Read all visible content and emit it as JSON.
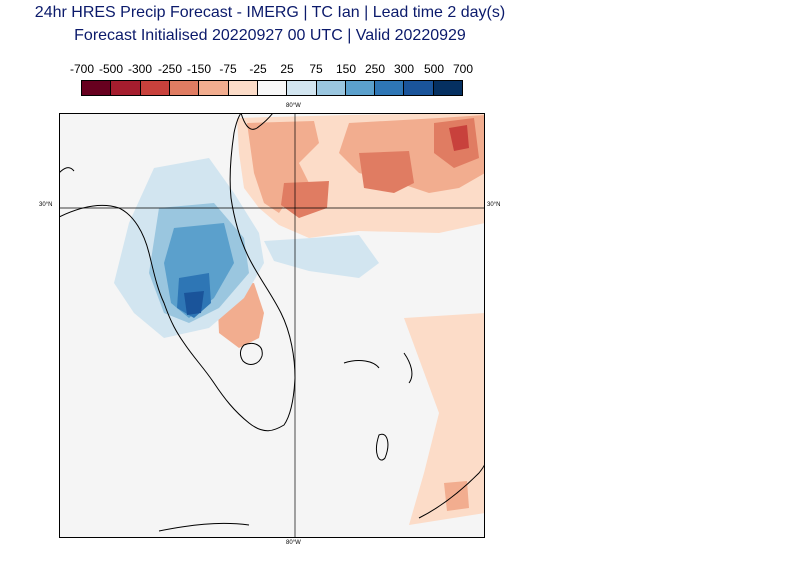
{
  "header": {
    "line1": "24hr HRES Precip Forecast - IMERG | TC Ian | Lead time 2 day(s)",
    "line2": "Forecast Initialised 20220927 00 UTC | Valid 20220929"
  },
  "colorbar": {
    "ticks": [
      "-700",
      "-500",
      "-300",
      "-250",
      "-150",
      "-75",
      "-25",
      "25",
      "75",
      "150",
      "250",
      "300",
      "500",
      "700"
    ],
    "colors": [
      "#67001f",
      "#a51d2e",
      "#c8413c",
      "#e07c62",
      "#f2ad8f",
      "#fcdcc8",
      "#f7f7f7",
      "#d2e5f0",
      "#9ac6df",
      "#5ba0cc",
      "#2e76b5",
      "#1a549a",
      "#053061"
    ]
  },
  "map": {
    "lat_label": "30°N",
    "lon_label": "80°W",
    "background": "#f5f5f5"
  }
}
